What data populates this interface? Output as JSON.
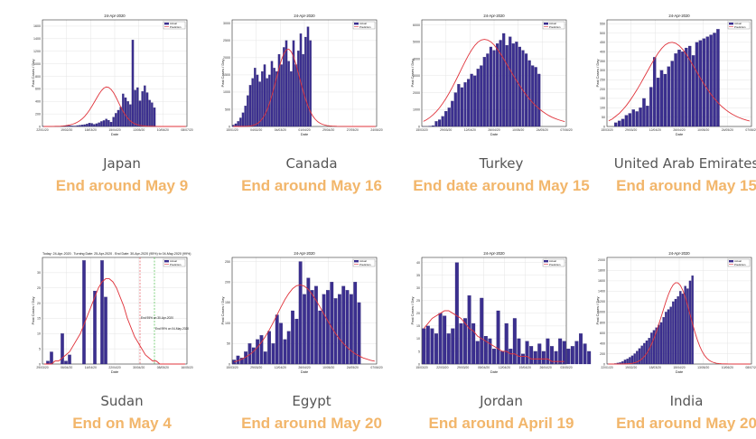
{
  "panels": [
    {
      "country": "Japan",
      "ending": "End around May 9",
      "chart_data": {
        "type": "bar",
        "title": "24-Apr-2020",
        "xlabel": "Date",
        "ylabel": "Past Cases / Day",
        "yticks": [
          0,
          200,
          400,
          600,
          800,
          1000,
          1200,
          1400,
          1600
        ],
        "ylim": [
          0,
          1700
        ],
        "xticks": [
          "22/01/20",
          "19/02/20",
          "18/03/20",
          "15/04/20",
          "13/05/20",
          "10/06/20",
          "08/07/20"
        ],
        "legend": [
          "Actual",
          "Prediction"
        ],
        "series": [
          {
            "name": "Actual",
            "values": [
              2,
              0,
              1,
              3,
              0,
              2,
              4,
              5,
              3,
              6,
              9,
              12,
              10,
              8,
              15,
              20,
              25,
              30,
              40,
              55,
              50,
              35,
              45,
              60,
              80,
              95,
              120,
              100,
              70,
              150,
              210,
              260,
              310,
              520,
              460,
              400,
              350,
              1380,
              580,
              620,
              410,
              560,
              650,
              540,
              420,
              380,
              300
            ]
          },
          {
            "name": "Prediction",
            "values": [
              0,
              0,
              0,
              1,
              1,
              2,
              3,
              5,
              8,
              12,
              18,
              26,
              36,
              50,
              68,
              92,
              122,
              160,
              206,
              260,
              320,
              385,
              452,
              516,
              572,
              612,
              630,
              622,
              590,
              540,
              470,
              390,
              310,
              240,
              178,
              128,
              88,
              60,
              40,
              26,
              17,
              11,
              7,
              4,
              3,
              2,
              1,
              1,
              0,
              0,
              0,
              0,
              0,
              0,
              0,
              0,
              0,
              0,
              0,
              0
            ]
          }
        ]
      }
    },
    {
      "country": "Canada",
      "ending": "End around May 16",
      "chart_data": {
        "type": "bar",
        "title": "24-Apr-2020",
        "xlabel": "Date",
        "ylabel": "Past Cases / Day",
        "yticks": [
          0,
          500,
          1000,
          1500,
          2000,
          2500,
          3000
        ],
        "ylim": [
          0,
          3100
        ],
        "xticks": [
          "15/01/20",
          "04/02/20",
          "04/03/20",
          "01/04/20",
          "29/04/20",
          "27/05/20",
          "24/06/20"
        ],
        "legend": [
          "Actual",
          "Prediction"
        ],
        "series": [
          {
            "name": "Actual",
            "values": [
              40,
              80,
              150,
              250,
              400,
              600,
              900,
              1200,
              1400,
              1700,
              1500,
              1300,
              1600,
              1800,
              1400,
              1500,
              1900,
              1700,
              1600,
              2100,
              1800,
              2300,
              2500,
              1900,
              1600,
              2500,
              1800,
              2200,
              2700,
              2100,
              2600,
              2900,
              2500
            ]
          },
          {
            "name": "Prediction",
            "values": [
              0,
              0,
              0,
              1,
              2,
              4,
              8,
              15,
              28,
              50,
              85,
              140,
              220,
              330,
              480,
              670,
              900,
              1160,
              1430,
              1700,
              1940,
              2120,
              2230,
              2250,
              2180,
              2030,
              1810,
              1550,
              1280,
              1020,
              790,
              590,
              430,
              300,
              210,
              140,
              95,
              62,
              40,
              26,
              17,
              11,
              7,
              4,
              3,
              2,
              1,
              1,
              0,
              0,
              0,
              0,
              0,
              0,
              0,
              0,
              0,
              0,
              0,
              0
            ]
          }
        ]
      }
    },
    {
      "country": "Turkey",
      "ending": "End date around May 15",
      "chart_data": {
        "type": "bar",
        "title": "24-Apr-2020",
        "xlabel": "Date",
        "ylabel": "Past Cases / Day",
        "yticks": [
          0,
          1000,
          2000,
          3000,
          4000,
          5000,
          6000
        ],
        "ylim": [
          0,
          6300
        ],
        "xticks": [
          "15/03/20",
          "29/03/20",
          "12/04/20",
          "26/04/20",
          "10/05/20",
          "24/05/20",
          "07/06/20"
        ],
        "legend": [
          "Actual",
          "Prediction"
        ],
        "series": [
          {
            "name": "Actual",
            "values": [
              1,
              1,
              20,
              50,
              300,
              400,
              600,
              900,
              1100,
              1500,
              2000,
              2500,
              2300,
              2600,
              2800,
              3100,
              3000,
              3400,
              3600,
              4100,
              4300,
              4700,
              4500,
              4900,
              5100,
              5500,
              4800,
              5300,
              4900,
              5000,
              4700,
              4500,
              4300,
              3900,
              3600,
              3500,
              3100
            ]
          },
          {
            "name": "Prediction",
            "values": [
              300,
              400,
              530,
              690,
              880,
              1100,
              1360,
              1650,
              1970,
              2320,
              2690,
              3070,
              3460,
              3840,
              4200,
              4520,
              4790,
              4990,
              5110,
              5150,
              5110,
              5000,
              4820,
              4580,
              4300,
              3990,
              3670,
              3340,
              3020,
              2710,
              2410,
              2130,
              1870,
              1630,
              1410,
              1220,
              1050,
              900,
              770,
              650,
              550,
              470,
              400,
              340,
              290
            ]
          }
        ]
      }
    },
    {
      "country": "United Arab Emirates",
      "ending": "End around May 15",
      "chart_data": {
        "type": "bar",
        "title": "24-Apr-2020",
        "xlabel": "Date",
        "ylabel": "Past Cases / Day",
        "yticks": [
          0,
          50,
          100,
          150,
          200,
          250,
          300,
          350,
          400,
          450,
          500,
          550
        ],
        "ylim": [
          0,
          570
        ],
        "xticks": [
          "15/03/20",
          "29/03/20",
          "12/04/20",
          "26/04/20",
          "10/05/20",
          "24/05/20",
          "07/06/20"
        ],
        "legend": [
          "Actual",
          "Prediction"
        ],
        "series": [
          {
            "name": "Actual",
            "values": [
              0,
              0,
              20,
              30,
              40,
              60,
              70,
              90,
              80,
              100,
              150,
              110,
              210,
              370,
              260,
              300,
              280,
              320,
              350,
              390,
              410,
              400,
              420,
              430,
              380,
              450,
              460,
              470,
              480,
              490,
              500,
              520
            ]
          },
          {
            "name": "Prediction",
            "values": [
              30,
              40,
              55,
              70,
              90,
              112,
              138,
              166,
              196,
              228,
              262,
              296,
              330,
              362,
              392,
              417,
              436,
              447,
              450,
              445,
              432,
              412,
              386,
              356,
              324,
              291,
              259,
              228,
              199,
              172,
              148,
              127,
              108,
              92,
              78,
              66,
              56,
              47,
              40,
              34,
              29
            ]
          }
        ]
      }
    },
    {
      "country": "Sudan",
      "ending": "End on May 4",
      "chart_data": {
        "type": "bar",
        "title": "Today: 24-Apr-2020 . Turning Date: 25-Apr-2020 . End Date: 30-Apr-2020 (95%) to 04-May-2020 (99%)",
        "xlabel": "Date",
        "ylabel": "Past Cases / Day",
        "yticks": [
          0,
          5,
          10,
          15,
          20,
          25,
          30
        ],
        "ylim": [
          0,
          35
        ],
        "xticks": [
          "29/03/20",
          "06/04/20",
          "14/04/20",
          "22/04/20",
          "30/04/20",
          "08/05/20",
          "16/05/20"
        ],
        "legend": [
          "Actual",
          "Prediction"
        ],
        "annotations": [
          "End 95% on 30-Apr-2020",
          "End 99% on 04-May-2020"
        ],
        "series": [
          {
            "name": "Actual",
            "values": [
              0,
              1,
              4,
              0,
              0,
              10,
              1,
              3,
              0,
              0,
              0,
              34,
              0,
              0,
              24,
              0,
              34,
              22,
              0,
              0
            ]
          },
          {
            "name": "Prediction",
            "values": [
              0,
              0,
              0,
              1,
              1,
              2,
              3,
              4,
              6,
              8,
              10,
              13,
              16,
              19,
              22,
              25,
              27,
              28,
              28,
              27,
              25,
              22,
              19,
              15,
              12,
              9,
              7,
              5,
              3,
              2,
              1,
              1,
              0,
              0,
              0,
              0,
              0,
              0,
              0,
              0
            ]
          }
        ]
      }
    },
    {
      "country": "Egypt",
      "ending": "End around May 20",
      "chart_data": {
        "type": "bar",
        "title": "24-Apr-2020",
        "xlabel": "Date",
        "ylabel": "Past Cases / Day",
        "yticks": [
          0,
          50,
          100,
          150,
          200,
          250
        ],
        "ylim": [
          0,
          260
        ],
        "xticks": [
          "15/03/20",
          "29/03/20",
          "12/04/20",
          "26/04/20",
          "10/05/20",
          "24/05/20",
          "07/06/20"
        ],
        "legend": [
          "Actual",
          "Prediction"
        ],
        "series": [
          {
            "name": "Actual",
            "values": [
              10,
              20,
              15,
              30,
              50,
              40,
              60,
              70,
              30,
              80,
              50,
              120,
              100,
              60,
              80,
              130,
              110,
              250,
              170,
              210,
              180,
              190,
              130,
              170,
              180,
              200,
              160,
              170,
              190,
              180,
              170,
              200,
              150
            ]
          },
          {
            "name": "Prediction",
            "values": [
              5,
              8,
              12,
              17,
              23,
              31,
              41,
              53,
              67,
              83,
              101,
              120,
              139,
              157,
              172,
              184,
              191,
              193,
              190,
              182,
              170,
              155,
              139,
              122,
              105,
              89,
              74,
              61,
              50,
              40,
              32,
              25,
              20,
              15,
              12,
              9,
              7
            ]
          }
        ]
      }
    },
    {
      "country": "Jordan",
      "ending": "End around April 19",
      "chart_data": {
        "type": "bar",
        "title": "24-Apr-2020",
        "xlabel": "Date",
        "ylabel": "Past Cases / Day",
        "yticks": [
          0,
          5,
          10,
          15,
          20,
          25,
          30,
          35,
          40
        ],
        "ylim": [
          0,
          42
        ],
        "xticks": [
          "15/03/20",
          "22/03/20",
          "29/03/20",
          "05/04/20",
          "12/04/20",
          "19/04/20",
          "26/04/20",
          "03/05/20"
        ],
        "legend": [
          "Actual",
          "Prediction"
        ],
        "series": [
          {
            "name": "Actual",
            "values": [
              14,
              15,
              14,
              12,
              20,
              19,
              12,
              14,
              40,
              16,
              18,
              27,
              16,
              9,
              26,
              11,
              10,
              6,
              21,
              5,
              16,
              6,
              18,
              10,
              4,
              9,
              7,
              5,
              8,
              5,
              10,
              7,
              5,
              10,
              9,
              6,
              7,
              9,
              12,
              8,
              5
            ]
          },
          {
            "name": "Prediction",
            "values": [
              14,
              16,
              18,
              19,
              20,
              21,
              21,
              20,
              19,
              18,
              16,
              14,
              13,
              11,
              10,
              9,
              8,
              7,
              6,
              5,
              5,
              4,
              4,
              3,
              3,
              3,
              2,
              2,
              2,
              2,
              2,
              1,
              1,
              1,
              1
            ]
          }
        ]
      }
    },
    {
      "country": "India",
      "ending": "End around May 20",
      "chart_data": {
        "type": "bar",
        "title": "24-Apr-2020",
        "xlabel": "Date",
        "ylabel": "Past Cases / Day",
        "yticks": [
          0,
          200,
          400,
          600,
          800,
          1000,
          1200,
          1400,
          1600,
          1800,
          2000
        ],
        "ylim": [
          0,
          2050
        ],
        "xticks": [
          "22/01/20",
          "19/02/20",
          "18/03/20",
          "15/04/20",
          "13/05/20",
          "10/06/20",
          "08/07/20"
        ],
        "legend": [
          "Actual",
          "Prediction"
        ],
        "series": [
          {
            "name": "Actual",
            "values": [
              1,
              2,
              5,
              10,
              20,
              30,
              50,
              80,
              100,
              130,
              160,
              200,
              250,
              300,
              350,
              400,
              450,
              500,
              600,
              650,
              700,
              750,
              800,
              900,
              1000,
              1050,
              1100,
              1200,
              1250,
              1300,
              1400,
              1350,
              1500,
              1450,
              1600,
              1700
            ]
          },
          {
            "name": "Prediction",
            "values": [
              0,
              0,
              0,
              0,
              0,
              1,
              1,
              2,
              4,
              8,
              14,
              24,
              40,
              64,
              98,
              145,
              206,
              284,
              380,
              492,
              620,
              760,
              908,
              1058,
              1204,
              1336,
              1446,
              1524,
              1564,
              1560,
              1510,
              1416,
              1284,
              1126,
              952,
              778,
              614,
              468,
              344,
              244,
              166,
              110,
              70,
              43,
              26,
              15,
              9,
              5,
              3,
              2,
              1,
              1,
              0,
              0,
              0,
              0,
              0,
              0,
              0,
              0
            ]
          }
        ]
      }
    }
  ]
}
